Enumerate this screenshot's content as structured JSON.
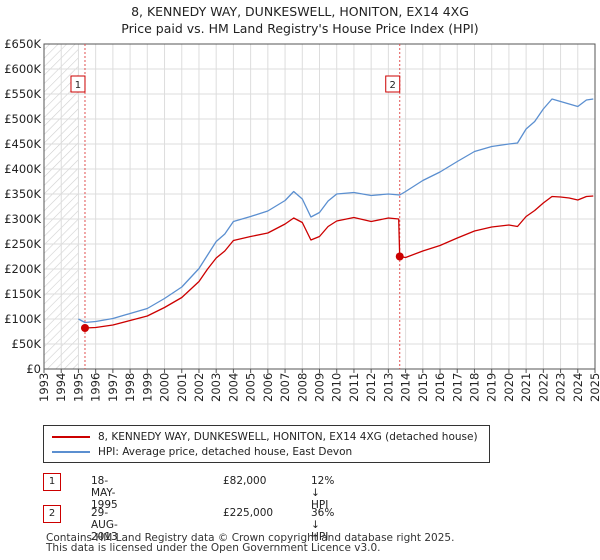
{
  "chart_data": {
    "type": "line",
    "title": "8, KENNEDY WAY, DUNKESWELL, HONITON, EX14 4XG",
    "subtitle": "Price paid vs. HM Land Registry's House Price Index (HPI)",
    "xlim": [
      1993,
      2025
    ],
    "ylim": [
      0,
      650000
    ],
    "x_ticks": [
      "1993",
      "1994",
      "1995",
      "1996",
      "1997",
      "1998",
      "1999",
      "2000",
      "2001",
      "2002",
      "2003",
      "2004",
      "2005",
      "2006",
      "2007",
      "2008",
      "2009",
      "2010",
      "2011",
      "2012",
      "2013",
      "2014",
      "2015",
      "2016",
      "2017",
      "2018",
      "2019",
      "2020",
      "2021",
      "2022",
      "2023",
      "2024",
      "2025"
    ],
    "y_ticks": [
      {
        "value": 0,
        "label": "£0"
      },
      {
        "value": 50000,
        "label": "£50K"
      },
      {
        "value": 100000,
        "label": "£100K"
      },
      {
        "value": 150000,
        "label": "£150K"
      },
      {
        "value": 200000,
        "label": "£200K"
      },
      {
        "value": 250000,
        "label": "£250K"
      },
      {
        "value": 300000,
        "label": "£300K"
      },
      {
        "value": 350000,
        "label": "£350K"
      },
      {
        "value": 400000,
        "label": "£400K"
      },
      {
        "value": 450000,
        "label": "£450K"
      },
      {
        "value": 500000,
        "label": "£500K"
      },
      {
        "value": 550000,
        "label": "£550K"
      },
      {
        "value": 600000,
        "label": "£600K"
      },
      {
        "value": 650000,
        "label": "£650K"
      }
    ],
    "hatched_before": 1995.0,
    "grid": true,
    "series": [
      {
        "name": "8, KENNEDY WAY, DUNKESWELL, HONITON, EX14 4XG (detached house)",
        "color": "#cc0000",
        "x": [
          1995.38,
          1996.0,
          1997.0,
          1998.0,
          1999.0,
          2000.0,
          2001.0,
          2002.0,
          2002.5,
          2003.0,
          2003.5,
          2004.0,
          2005.0,
          2006.0,
          2007.0,
          2007.5,
          2008.0,
          2008.5,
          2009.0,
          2009.5,
          2010.0,
          2011.0,
          2012.0,
          2013.0,
          2013.6,
          2013.66,
          2014.0,
          2015.0,
          2016.0,
          2017.0,
          2018.0,
          2019.0,
          2020.0,
          2020.5,
          2021.0,
          2021.5,
          2022.0,
          2022.5,
          2023.0,
          2023.5,
          2024.0,
          2024.5,
          2024.9
        ],
        "y": [
          82000,
          83000,
          88000,
          97000,
          106000,
          123000,
          143000,
          175000,
          200000,
          222000,
          236000,
          257000,
          265000,
          272000,
          290000,
          302000,
          293000,
          258000,
          265000,
          285000,
          296000,
          303000,
          295000,
          302000,
          300000,
          225000,
          223000,
          236000,
          247000,
          262000,
          276000,
          284000,
          288000,
          285000,
          305000,
          317000,
          332000,
          345000,
          344000,
          342000,
          338000,
          345000,
          346000
        ]
      },
      {
        "name": "HPI: Average price, detached house, East Devon",
        "color": "#5b8fd0",
        "x": [
          1995.0,
          1995.38,
          1996.0,
          1997.0,
          1998.0,
          1999.0,
          2000.0,
          2001.0,
          2002.0,
          2002.5,
          2003.0,
          2003.5,
          2004.0,
          2005.0,
          2006.0,
          2007.0,
          2007.5,
          2008.0,
          2008.5,
          2009.0,
          2009.5,
          2010.0,
          2011.0,
          2012.0,
          2013.0,
          2013.66,
          2014.0,
          2015.0,
          2016.0,
          2017.0,
          2018.0,
          2019.0,
          2020.0,
          2020.5,
          2021.0,
          2021.5,
          2022.0,
          2022.5,
          2023.0,
          2023.5,
          2024.0,
          2024.5,
          2024.9
        ],
        "y": [
          100000,
          93000,
          95000,
          101000,
          111000,
          121000,
          141000,
          164000,
          201000,
          228000,
          255000,
          270000,
          295000,
          305000,
          316000,
          337000,
          355000,
          340000,
          304000,
          313000,
          336000,
          350000,
          353000,
          347000,
          350000,
          348000,
          355000,
          377000,
          394000,
          415000,
          435000,
          445000,
          450000,
          452000,
          480000,
          495000,
          520000,
          540000,
          535000,
          530000,
          525000,
          538000,
          540000
        ]
      }
    ],
    "transactions": [
      {
        "id": "1",
        "date": "18-MAY-1995",
        "x": 1995.38,
        "price": 82000,
        "price_label": "£82,000",
        "hpi": "12% ↓ HPI"
      },
      {
        "id": "2",
        "date": "29-AUG-2013",
        "x": 2013.66,
        "price": 225000,
        "price_label": "£225,000",
        "hpi": "36% ↓ HPI"
      }
    ]
  },
  "footer": {
    "line1": "Contains HM Land Registry data © Crown copyright and database right 2025.",
    "line2": "This data is licensed under the Open Government Licence v3.0."
  }
}
